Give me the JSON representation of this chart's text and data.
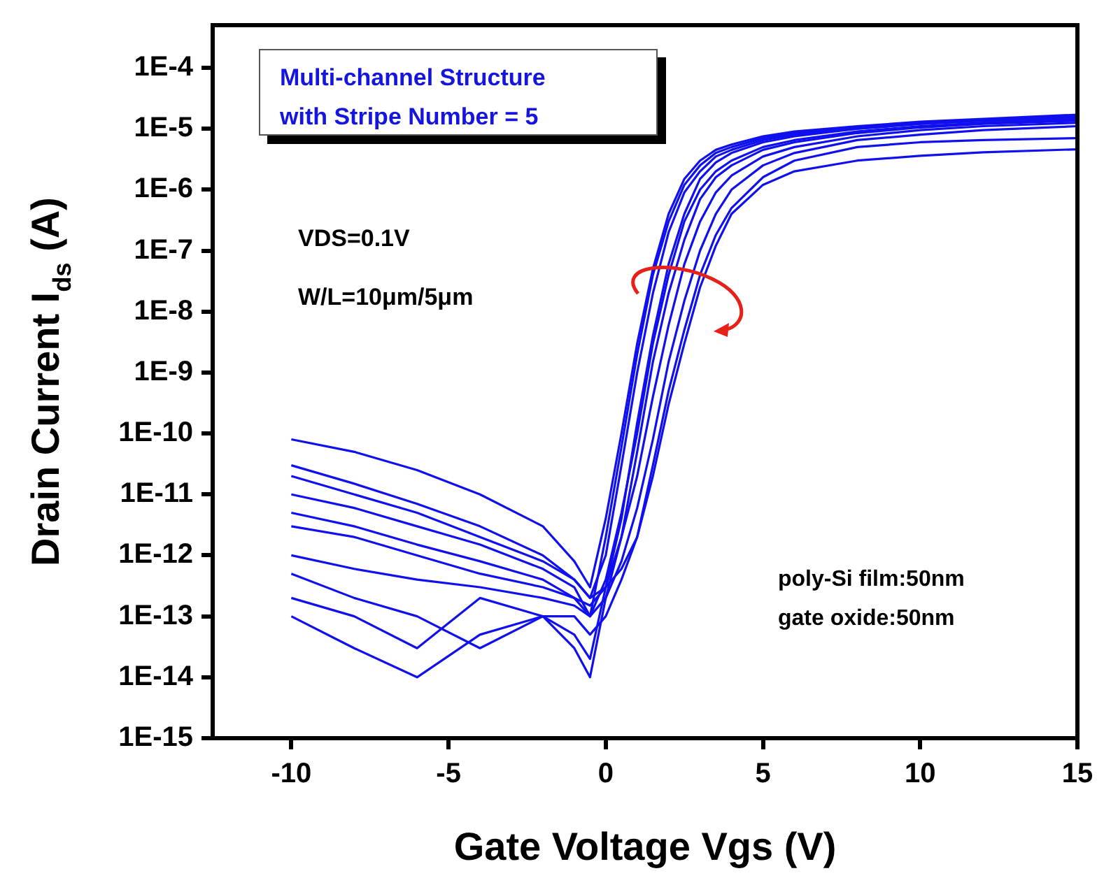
{
  "chart_data": {
    "type": "line",
    "xlabel": "Gate Voltage Vgs (V)",
    "ylabel": "Drain Current I$_{ds}$ (A)",
    "log": "y",
    "xlim": [
      -12.5,
      15
    ],
    "xticks": [
      -10,
      -5,
      0,
      5,
      10,
      15
    ],
    "ylim": [
      1e-15,
      0.0005
    ],
    "yticks": [
      {
        "value": 1e-15,
        "label": "1E-15"
      },
      {
        "value": 1e-14,
        "label": "1E-14"
      },
      {
        "value": 1e-13,
        "label": "1E-13"
      },
      {
        "value": 1e-12,
        "label": "1E-12"
      },
      {
        "value": 1e-11,
        "label": "1E-11"
      },
      {
        "value": 1e-10,
        "label": "1E-10"
      },
      {
        "value": 1e-09,
        "label": "1E-9"
      },
      {
        "value": 1e-08,
        "label": "1E-8"
      },
      {
        "value": 1e-07,
        "label": "1E-7"
      },
      {
        "value": 1e-06,
        "label": "1E-6"
      },
      {
        "value": 1e-05,
        "label": "1E-5"
      },
      {
        "value": 0.0001,
        "label": "1E-4"
      }
    ],
    "x": [
      -10,
      -8,
      -6,
      -4,
      -2,
      -1,
      -0.5,
      0,
      0.5,
      1,
      1.5,
      2,
      2.5,
      3,
      3.5,
      4,
      5,
      6,
      8,
      10,
      12,
      15
    ],
    "series": [
      {
        "color": "#1010ee",
        "values": [
          8e-11,
          5e-11,
          2.5e-11,
          1e-11,
          3e-12,
          8e-13,
          3e-13,
          4e-12,
          1e-10,
          3e-09,
          5e-08,
          4e-07,
          1.5e-06,
          3e-06,
          4.5e-06,
          5.5e-06,
          7.5e-06,
          9e-06,
          1.1e-05,
          1.3e-05,
          1.45e-05,
          1.7e-05
        ]
      },
      {
        "color": "#1010ee",
        "values": [
          1e-11,
          6e-12,
          3e-12,
          1.5e-12,
          6e-13,
          3e-13,
          1e-13,
          2e-12,
          6e-11,
          2e-09,
          4e-08,
          3e-07,
          1.2e-06,
          2.5e-06,
          4e-06,
          5e-06,
          7e-06,
          8.5e-06,
          1.05e-05,
          1.25e-05,
          1.4e-05,
          1.6e-05
        ]
      },
      {
        "color": "#1010ee",
        "values": [
          2e-13,
          1e-13,
          3e-14,
          2e-13,
          1e-13,
          5e-14,
          2e-14,
          3e-13,
          4e-12,
          1.5e-10,
          4e-09,
          6e-08,
          4e-07,
          1.5e-06,
          2.8e-06,
          4e-06,
          6e-06,
          7.5e-06,
          1e-05,
          1.2e-05,
          1.35e-05,
          1.5e-05
        ]
      },
      {
        "color": "#1010ee",
        "values": [
          3e-11,
          1.5e-11,
          7e-12,
          3e-12,
          1e-12,
          4e-13,
          2e-13,
          1e-12,
          3e-11,
          1e-09,
          2e-08,
          2e-07,
          9e-07,
          2e-06,
          3.5e-06,
          4.5e-06,
          6.5e-06,
          8e-06,
          1e-05,
          1.2e-05,
          1.35e-05,
          1.5e-05
        ]
      },
      {
        "color": "#1010ee",
        "values": [
          5e-12,
          3e-12,
          1.5e-12,
          8e-13,
          4e-13,
          2e-13,
          1e-13,
          4e-13,
          5e-12,
          1e-10,
          3e-09,
          4e-08,
          3e-07,
          1e-06,
          2e-06,
          3e-06,
          5e-06,
          6.5e-06,
          9e-06,
          1.1e-05,
          1.25e-05,
          1.4e-05
        ]
      },
      {
        "color": "#1010ee",
        "values": [
          1e-13,
          3e-14,
          1e-14,
          5e-14,
          1e-13,
          3e-14,
          1e-14,
          2e-13,
          2e-12,
          5e-11,
          1.5e-09,
          2e-08,
          1.5e-07,
          7e-07,
          1.6e-06,
          2.5e-06,
          4.5e-06,
          6e-06,
          8.5e-06,
          1.05e-05,
          1.2e-05,
          1.35e-05
        ]
      },
      {
        "color": "#1010ee",
        "values": [
          3e-12,
          2e-12,
          1e-12,
          5e-13,
          3e-13,
          2e-13,
          1.5e-13,
          3e-13,
          2e-12,
          2e-11,
          4e-10,
          6e-09,
          6e-08,
          3e-07,
          9e-07,
          1.7e-06,
          3.5e-06,
          5e-06,
          7.5e-06,
          9.5e-06,
          1.1e-05,
          1.25e-05
        ]
      },
      {
        "color": "#1010ee",
        "values": [
          1e-12,
          6e-13,
          4e-13,
          3e-13,
          2e-13,
          1.5e-13,
          1e-13,
          2e-13,
          8e-13,
          6e-12,
          8e-11,
          1.5e-09,
          1.5e-08,
          1e-07,
          4e-07,
          1e-06,
          2.5e-06,
          4e-06,
          6.5e-06,
          8e-06,
          9.5e-06,
          1.1e-05
        ]
      },
      {
        "color": "#1010ee",
        "values": [
          2e-11,
          1e-11,
          5e-12,
          2e-12,
          8e-13,
          4e-13,
          2e-13,
          3e-13,
          6e-13,
          2e-12,
          2e-11,
          3e-10,
          3e-09,
          2.5e-08,
          1.2e-07,
          4e-07,
          1.2e-06,
          2e-06,
          3e-06,
          3.6e-06,
          4.1e-06,
          4.6e-06
        ]
      },
      {
        "color": "#1010ee",
        "values": [
          5e-13,
          2e-13,
          1e-13,
          3e-14,
          1e-13,
          1e-13,
          5e-14,
          1e-13,
          4e-13,
          2e-12,
          3e-11,
          5e-10,
          5e-09,
          4e-08,
          1.8e-07,
          5e-07,
          1.6e-06,
          3e-06,
          5e-06,
          6e-06,
          6.5e-06,
          7e-06
        ]
      }
    ],
    "annotations": [
      "Multi-channel Structure\nwith Stripe Number = 5",
      "VDS=0.1V",
      "W/L=10μm/5μm",
      "poly-Si film:50nm",
      "gate oxide:50nm"
    ]
  }
}
